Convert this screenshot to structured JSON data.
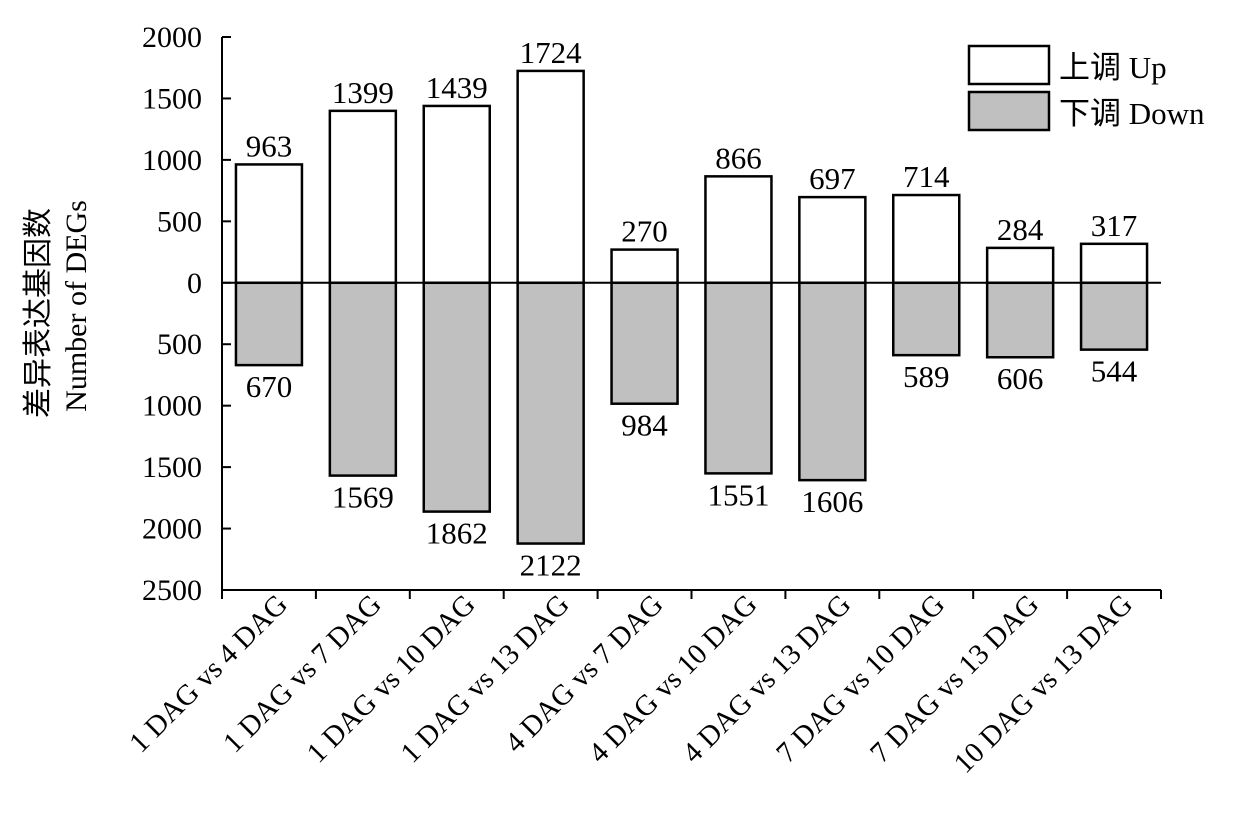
{
  "chart_data": {
    "type": "bar",
    "categories": [
      "1 DAG vs 4 DAG",
      "1 DAG vs 7 DAG",
      "1 DAG vs 10 DAG",
      "1 DAG vs 13 DAG",
      "4 DAG vs 7 DAG",
      "4 DAG vs 10 DAG",
      "4 DAG vs 13 DAG",
      "7 DAG vs 10 DAG",
      "7 DAG vs 13 DAG",
      "10 DAG vs 13 DAG"
    ],
    "series": [
      {
        "name": "上调 Up",
        "values": [
          963,
          1399,
          1439,
          1724,
          270,
          866,
          697,
          714,
          284,
          317
        ],
        "color": "#ffffff"
      },
      {
        "name": "下调 Down",
        "values": [
          670,
          1569,
          1862,
          2122,
          984,
          1551,
          1606,
          589,
          606,
          544
        ],
        "color": "#c0c0c0"
      }
    ],
    "ylabel_zh": "差异表达基因数",
    "ylabel_en": "Number of DEGs",
    "ylim": [
      -2500,
      2000
    ],
    "yticks": [
      2000,
      1500,
      1000,
      500,
      0,
      -500,
      -1000,
      -1500,
      -2000,
      -2500
    ],
    "ytick_labels": [
      "2000",
      "1500",
      "1000",
      "500",
      "0",
      "500",
      "1000",
      "1500",
      "2000",
      "2500"
    ],
    "legend_position": "top-right",
    "grid": false
  }
}
